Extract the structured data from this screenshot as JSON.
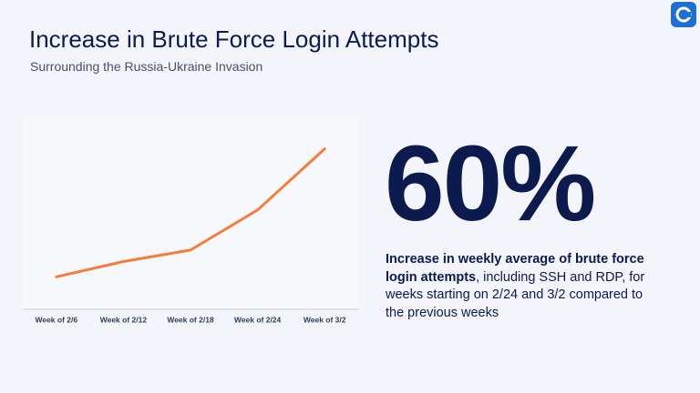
{
  "slide": {
    "title": "Increase in Brute Force Login Attempts",
    "subtitle": "Surrounding the Russia-Ukraine Invasion",
    "stat": "60%",
    "description_bold": "Increase in weekly average of brute force login attempts",
    "description_rest": ", including SSH and RDP, for weeks starting on 2/24 and 3/2 compared to the previous weeks"
  },
  "chart_data": {
    "type": "line",
    "categories": [
      "Week of 2/6",
      "Week of 2/12",
      "Week of 2/18",
      "Week of 2/24",
      "Week of 3/2"
    ],
    "values": [
      17,
      25,
      31,
      52,
      84
    ],
    "color": "#f47c3c",
    "ylim": [
      0,
      100
    ]
  }
}
